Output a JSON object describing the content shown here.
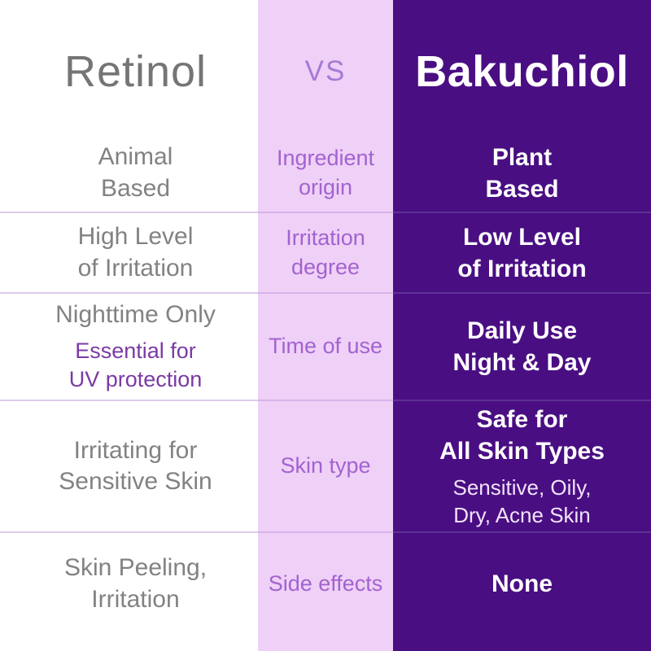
{
  "palette": {
    "left_column_bg": "#ffffff",
    "middle_column_bg": "#efd0f7",
    "right_column_bg": "#4a0e83",
    "title_gray": "#757575",
    "vs_purple": "#a87ad6",
    "category_label_purple": "#a263cf",
    "left_body_gray": "#828282",
    "left_note_purple": "#7b3aa4",
    "right_text_white": "#ffffff",
    "right_note_white": "#f0e2f8",
    "divider_on_white": "#ddcbec",
    "divider_on_lavender": "#d8b3ea",
    "divider_on_dark": "#5e3095"
  },
  "header": {
    "retinol": "Retinol",
    "vs": "VS",
    "bakuchiol": "Bakuchiol"
  },
  "rows": [
    {
      "category": "Ingredient\norigin",
      "retinol": "Animal\nBased",
      "bakuchiol": "Plant\nBased"
    },
    {
      "category": "Irritation\ndegree",
      "retinol": "High Level\nof Irritation",
      "bakuchiol": "Low Level\nof Irritation"
    },
    {
      "category": "Time of use",
      "retinol": "Nighttime Only",
      "retinol_note": "Essential for\nUV protection",
      "bakuchiol": "Daily Use\nNight & Day"
    },
    {
      "category": "Skin type",
      "retinol": "Irritating for\nSensitive Skin",
      "bakuchiol": "Safe for\nAll Skin Types",
      "bakuchiol_note": "Sensitive, Oily,\nDry, Acne Skin"
    },
    {
      "category": "Side effects",
      "retinol": "Skin Peeling,\nIrritation",
      "bakuchiol": "None"
    }
  ]
}
